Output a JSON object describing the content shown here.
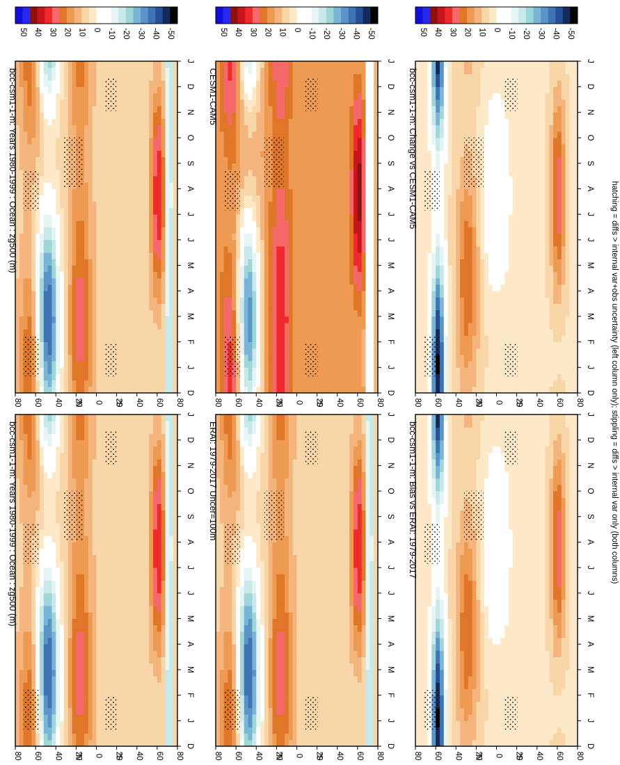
{
  "figure": {
    "footnote": "hatching = diffs > internal var+obs uncertainty (left column only); stippling = diffs > internal var only (both columns)"
  },
  "chart_data": [
    {
      "type": "heatmap",
      "panel": "left-top",
      "title": "bcc-csm1-1-m: Years 1980-1999 : Ocean : zg500 (m)",
      "x": [
        "D",
        "J",
        "F",
        "M",
        "A",
        "M",
        "J",
        "J",
        "A",
        "S",
        "O",
        "N",
        "D",
        "J"
      ],
      "y_ticks": [
        "80",
        "60",
        "40",
        "20",
        "0",
        "20",
        "40",
        "60",
        "80"
      ],
      "y_hemisphere_labels": [
        "°N",
        "°S"
      ],
      "colorbar": [
        "50",
        "40",
        "30",
        "20",
        "10",
        "0",
        "-10",
        "-20",
        "-30",
        "-40",
        "-50"
      ],
      "zlim": [
        -50,
        50
      ],
      "grid": false
    },
    {
      "type": "heatmap",
      "panel": "right-top",
      "title": "bcc-csm1-1-m: Years 1980-1999 : Ocean : zg500 (m)",
      "x": [
        "D",
        "J",
        "F",
        "M",
        "A",
        "M",
        "J",
        "J",
        "A",
        "S",
        "O",
        "N",
        "D",
        "J"
      ],
      "y_ticks": [
        "80",
        "60",
        "40",
        "20",
        "0",
        "20",
        "40",
        "60",
        "80"
      ],
      "y_hemisphere_labels": [
        "°N",
        "°S"
      ],
      "colorbar": [
        "50",
        "40",
        "30",
        "20",
        "10",
        "0",
        "-10",
        "-20",
        "-30",
        "-40",
        "-50"
      ],
      "zlim": [
        -50,
        50
      ],
      "grid": false
    },
    {
      "type": "heatmap",
      "panel": "left-middle",
      "title": "ERAI: 1979-2017 Uncer=100m",
      "x": [
        "D",
        "J",
        "F",
        "M",
        "A",
        "M",
        "J",
        "J",
        "A",
        "S",
        "O",
        "N",
        "D",
        "J"
      ],
      "y_ticks": [
        "80",
        "60",
        "40",
        "20",
        "0",
        "20",
        "40",
        "60",
        "80"
      ],
      "y_hemisphere_labels": [
        "°N",
        "°S"
      ],
      "colorbar": [
        "50",
        "40",
        "30",
        "20",
        "10",
        "0",
        "-10",
        "-20",
        "-30",
        "-40",
        "-50"
      ],
      "zlim": [
        -50,
        50
      ],
      "grid": false
    },
    {
      "type": "heatmap",
      "panel": "right-middle",
      "title": "CESM1-CAM5",
      "x": [
        "D",
        "J",
        "F",
        "M",
        "A",
        "M",
        "J",
        "J",
        "A",
        "S",
        "O",
        "N",
        "D",
        "J"
      ],
      "y_ticks": [
        "80",
        "60",
        "40",
        "20",
        "0",
        "20",
        "40",
        "60",
        "80"
      ],
      "y_hemisphere_labels": [
        "°N",
        "°S"
      ],
      "colorbar": [
        "50",
        "40",
        "30",
        "20",
        "10",
        "0",
        "-10",
        "-20",
        "-30",
        "-40",
        "-50"
      ],
      "zlim": [
        -50,
        50
      ],
      "grid": false
    },
    {
      "type": "heatmap",
      "panel": "left-bottom",
      "title": "bcc-csm1-1-m: Bias vs ERAI: 1979-2017",
      "x": [
        "D",
        "J",
        "F",
        "M",
        "A",
        "M",
        "J",
        "J",
        "A",
        "S",
        "O",
        "N",
        "D",
        "J"
      ],
      "y_ticks": [
        "80",
        "60",
        "40",
        "20",
        "0",
        "20",
        "40",
        "60",
        "80"
      ],
      "y_hemisphere_labels": [
        "°N",
        "°S"
      ],
      "colorbar": [
        "50",
        "40",
        "30",
        "20",
        "10",
        "0",
        "-10",
        "-20",
        "-30",
        "-40",
        "-50"
      ],
      "zlim": [
        -50,
        50
      ],
      "grid": false
    },
    {
      "type": "heatmap",
      "panel": "right-bottom",
      "title": "bcc-csm1-1-m: Change vs CESM1-CAM5",
      "x": [
        "D",
        "J",
        "F",
        "M",
        "A",
        "M",
        "J",
        "J",
        "A",
        "S",
        "O",
        "N",
        "D",
        "J"
      ],
      "y_ticks": [
        "80",
        "60",
        "40",
        "20",
        "0",
        "20",
        "40",
        "60",
        "80"
      ],
      "y_hemisphere_labels": [
        "°N",
        "°S"
      ],
      "colorbar": [
        "50",
        "40",
        "30",
        "20",
        "10",
        "0",
        "-10",
        "-20",
        "-30",
        "-40",
        "-50"
      ],
      "zlim": [
        -50,
        50
      ],
      "grid": false
    }
  ],
  "colors": {
    "scale": [
      "#1010d8",
      "#2828f0",
      "#8c0f12",
      "#c8141a",
      "#ee2a2c",
      "#f5696a",
      "#df7628",
      "#ef9a52",
      "#f3b57d",
      "#f8d6a8",
      "#fde9c8",
      "#ffffff",
      "#ffffff",
      "#e6f4f4",
      "#c8e9ea",
      "#9fd6d8",
      "#7ab4d6",
      "#5b95c8",
      "#3e73b6",
      "#264f95",
      "#142a5c",
      "#000000"
    ]
  }
}
